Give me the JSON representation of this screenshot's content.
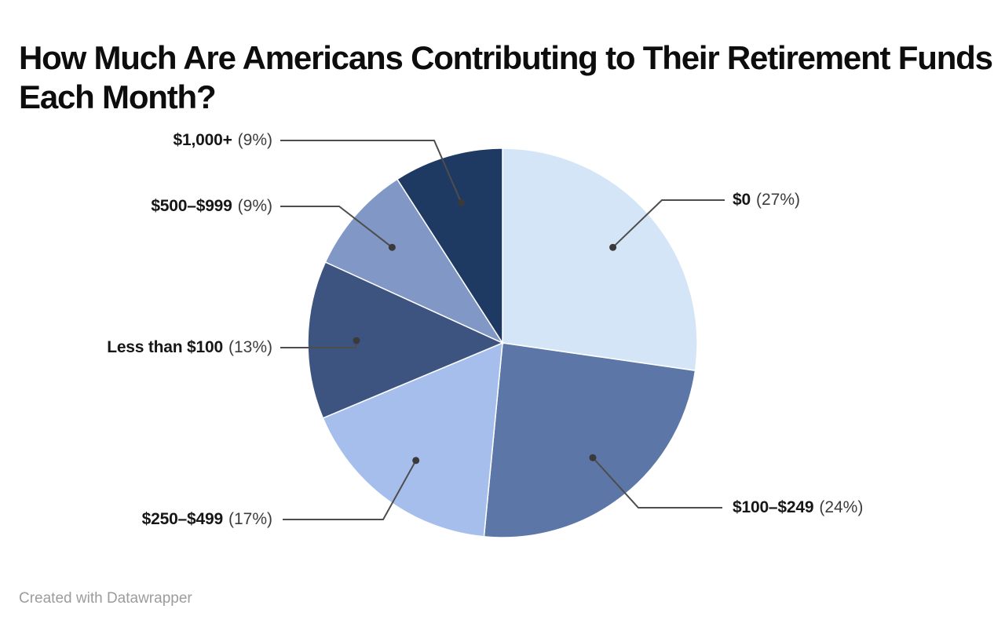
{
  "page": {
    "background_color": "#ffffff",
    "footer_credit": "Created with Datawrapper"
  },
  "chart_data": {
    "type": "pie",
    "title": "How Much Are Americans Contributing to Their Retirement Funds Each Month?",
    "value_unit": "percent",
    "legend_position": "none",
    "label_style": "external-labels-with-leader-lines-and-dots",
    "slices": [
      {
        "label": "$0",
        "value": 27,
        "pct_label": "(27%)",
        "color": "#d5e5f8",
        "label_side": "right"
      },
      {
        "label": "$100–$249",
        "value": 24,
        "pct_label": "(24%)",
        "color": "#5c76a8",
        "label_side": "right"
      },
      {
        "label": "$250–$499",
        "value": 17,
        "pct_label": "(17%)",
        "color": "#a6beec",
        "label_side": "left"
      },
      {
        "label": "Less than $100",
        "value": 13,
        "pct_label": "(13%)",
        "color": "#3e5480",
        "label_side": "left"
      },
      {
        "label": "$500–$999",
        "value": 9,
        "pct_label": "(9%)",
        "color": "#8197c5",
        "label_side": "left"
      },
      {
        "label": "$1,000+",
        "value": 9,
        "pct_label": "(9%)",
        "color": "#1e3a63",
        "label_side": "left"
      }
    ],
    "colors": {
      "leader_line": "#4d4d4d",
      "leader_dot": "#3a3a3a",
      "slice_border": "#ffffff",
      "title_text": "#0d0d0d",
      "credit_text": "#9c9c9c"
    }
  }
}
